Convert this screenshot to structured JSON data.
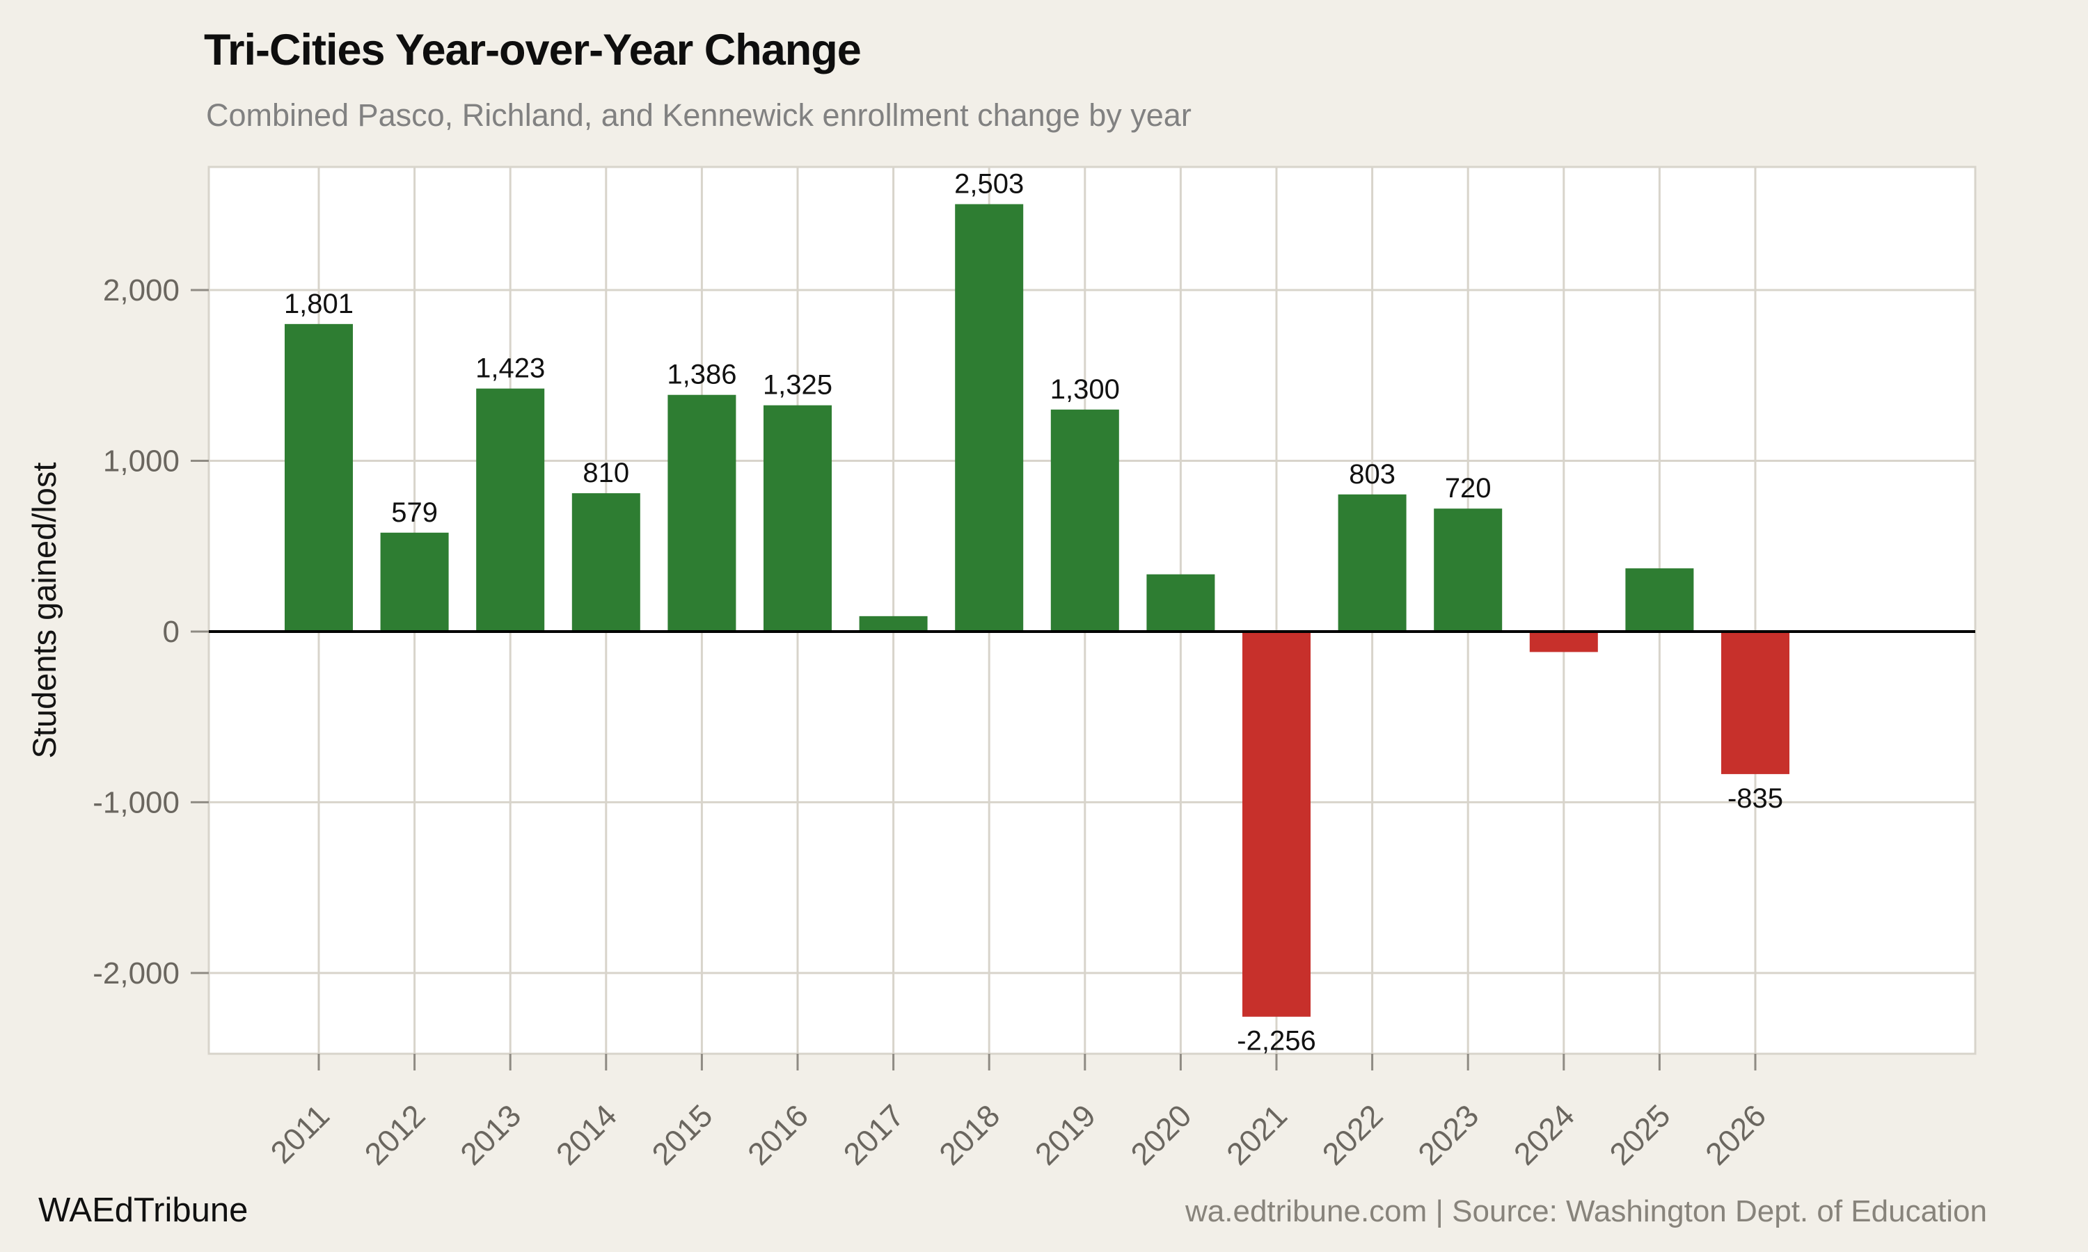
{
  "header": {
    "title": "Tri-Cities Year-over-Year Change",
    "subtitle": "Combined Pasco, Richland, and Kennewick enrollment change by year"
  },
  "footer": {
    "brand": "WAEdTribune",
    "source": "wa.edtribune.com | Source: Washington Dept. of Education"
  },
  "colors": {
    "background": "#f2efe8",
    "plot_background": "#ffffff",
    "grid": "#d8d4cb",
    "tick_mark": "#8f8b83",
    "tick_label": "#6a665f",
    "positive": "#2e7d32",
    "negative": "#c7302b",
    "zero_line": "#000000",
    "bar_label": "#111111",
    "title": "#0e0e0e",
    "subtitle": "#818181",
    "brand": "#101010",
    "source": "#87837b"
  },
  "chart_data": {
    "type": "bar",
    "title": "Tri-Cities Year-over-Year Change",
    "subtitle": "Combined Pasco, Richland, and Kennewick enrollment change by year",
    "xlabel": "",
    "ylabel": "Students gained/lost",
    "categories": [
      "2011",
      "2012",
      "2013",
      "2014",
      "2015",
      "2016",
      "2017",
      "2018",
      "2019",
      "2020",
      "2021",
      "2022",
      "2023",
      "2024",
      "2025",
      "2026"
    ],
    "values": [
      1801,
      579,
      1423,
      810,
      1386,
      1325,
      90,
      2503,
      1300,
      335,
      -2256,
      803,
      720,
      -120,
      370,
      -835
    ],
    "bar_labels": [
      "1,801",
      "579",
      "1,423",
      "810",
      "1,386",
      "1,325",
      "",
      "2,503",
      "1,300",
      "",
      "-2,256",
      "803",
      "720",
      "",
      "",
      "-835"
    ],
    "y_ticks": [
      2000,
      1000,
      0,
      -1000,
      -2000
    ],
    "y_tick_labels": [
      "2,000",
      "1,000",
      "0",
      "-1,000",
      "-2,000"
    ],
    "ylim": [
      -2473,
      2721
    ],
    "grid": true,
    "legend_position": "none",
    "bar_color_positive": "#2e7d32",
    "bar_color_negative": "#c7302b"
  }
}
